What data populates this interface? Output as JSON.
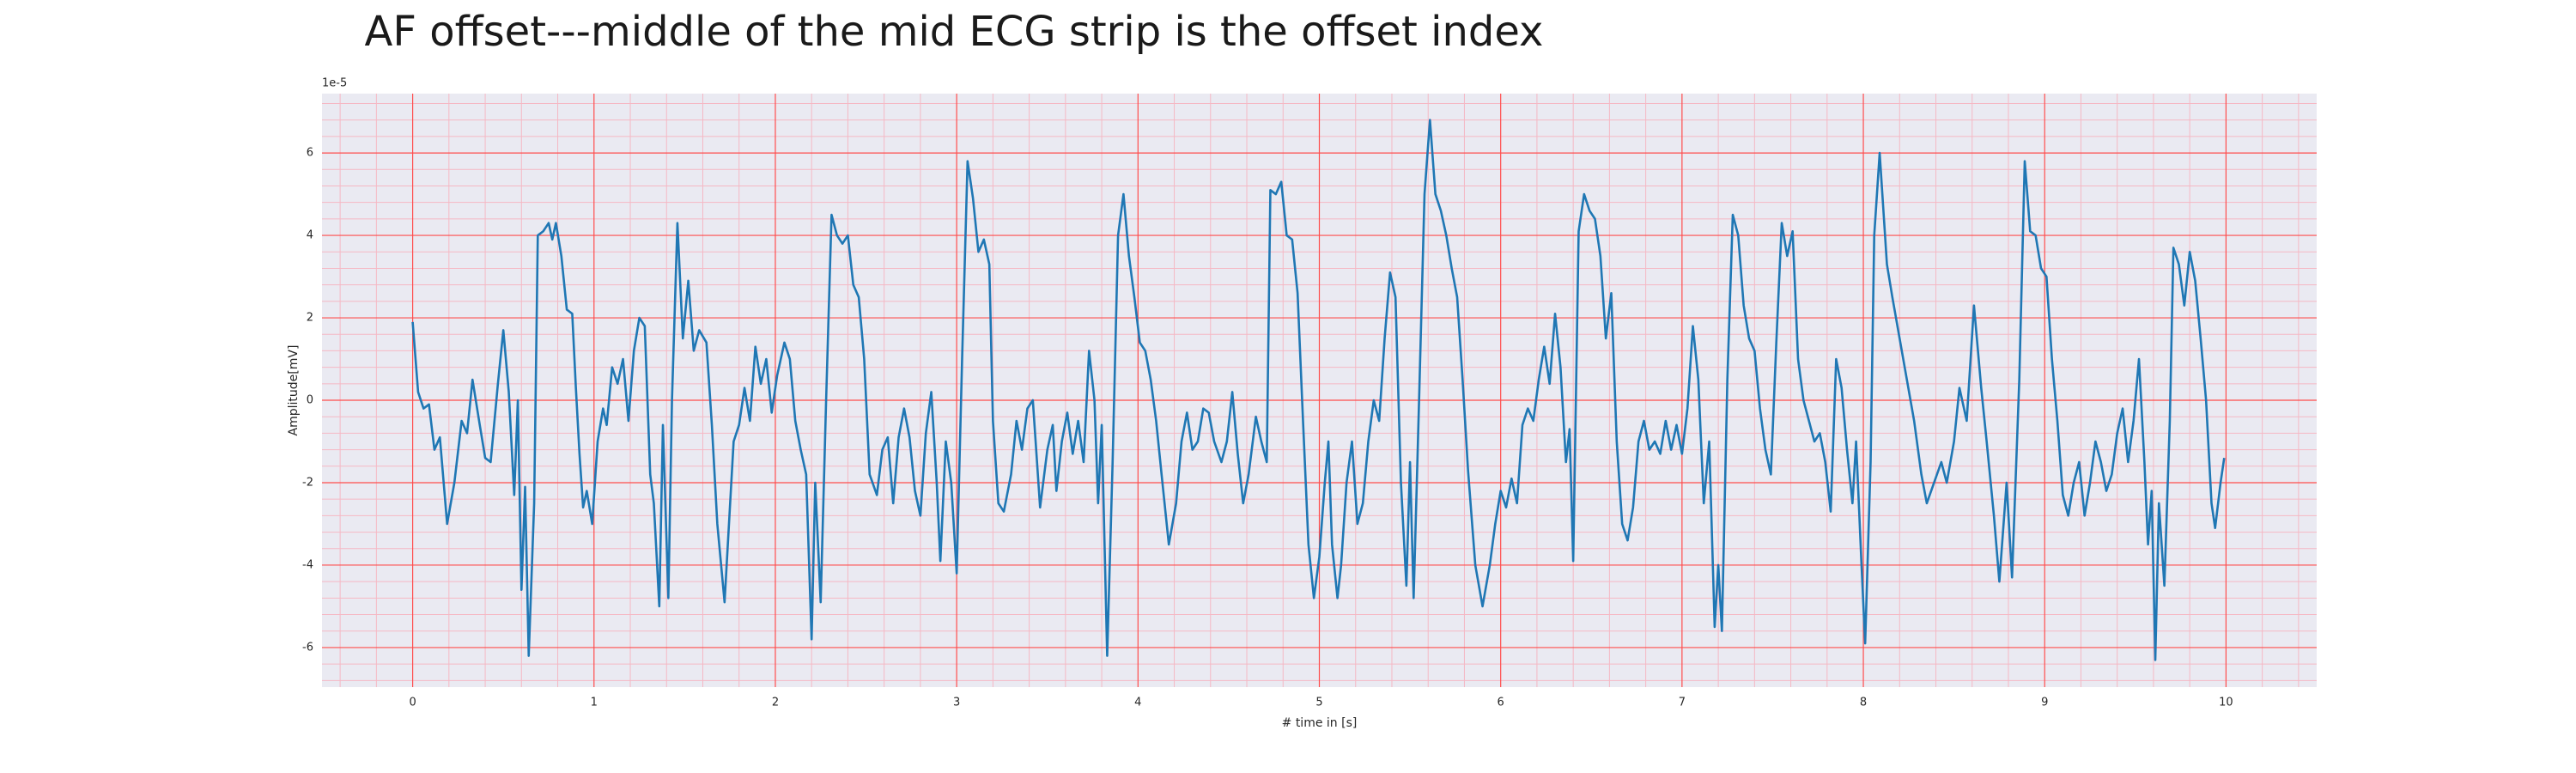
{
  "chart_data": {
    "type": "line",
    "title": "AF offset---middle of the mid ECG strip is the offset index",
    "x_label": "# time in [s]",
    "y_label": "Amplitude[mV]",
    "y_offset_label": "1e-5",
    "color": "#1f77b4",
    "grid": true,
    "grid_color": "#ff4d4d",
    "minor_grid_color": "#f5b8c4",
    "minor_grid_divisions": 5,
    "background": "#eaeaf2",
    "xlim": [
      -0.5,
      10.5
    ],
    "xticks": [
      0,
      1,
      2,
      3,
      4,
      5,
      6,
      7,
      8,
      9,
      10
    ],
    "ylim": [
      -6.96,
      7.44
    ],
    "yticks": [
      -6,
      -4,
      -2,
      0,
      2,
      4,
      6
    ],
    "x": [
      0.0,
      0.03,
      0.06,
      0.09,
      0.12,
      0.15,
      0.19,
      0.23,
      0.27,
      0.3,
      0.33,
      0.37,
      0.4,
      0.43,
      0.47,
      0.5,
      0.53,
      0.56,
      0.58,
      0.6,
      0.62,
      0.64,
      0.67,
      0.69,
      0.72,
      0.75,
      0.77,
      0.79,
      0.82,
      0.85,
      0.88,
      0.9,
      0.92,
      0.94,
      0.96,
      0.99,
      1.02,
      1.05,
      1.07,
      1.1,
      1.13,
      1.16,
      1.19,
      1.22,
      1.25,
      1.28,
      1.31,
      1.33,
      1.36,
      1.38,
      1.41,
      1.43,
      1.46,
      1.49,
      1.52,
      1.55,
      1.58,
      1.62,
      1.65,
      1.68,
      1.72,
      1.77,
      1.8,
      1.83,
      1.86,
      1.89,
      1.92,
      1.95,
      1.98,
      2.01,
      2.05,
      2.08,
      2.11,
      2.14,
      2.17,
      2.2,
      2.22,
      2.25,
      2.28,
      2.31,
      2.34,
      2.37,
      2.4,
      2.43,
      2.46,
      2.49,
      2.52,
      2.56,
      2.59,
      2.62,
      2.65,
      2.68,
      2.71,
      2.74,
      2.77,
      2.8,
      2.83,
      2.86,
      2.89,
      2.91,
      2.94,
      2.97,
      3.0,
      3.03,
      3.06,
      3.09,
      3.12,
      3.15,
      3.18,
      3.2,
      3.23,
      3.26,
      3.3,
      3.33,
      3.36,
      3.39,
      3.42,
      3.46,
      3.5,
      3.53,
      3.55,
      3.58,
      3.61,
      3.64,
      3.67,
      3.7,
      3.73,
      3.76,
      3.78,
      3.8,
      3.83,
      3.86,
      3.89,
      3.92,
      3.95,
      3.98,
      4.01,
      4.04,
      4.07,
      4.1,
      4.13,
      4.17,
      4.21,
      4.24,
      4.27,
      4.3,
      4.33,
      4.36,
      4.39,
      4.42,
      4.46,
      4.49,
      4.52,
      4.55,
      4.58,
      4.61,
      4.65,
      4.68,
      4.71,
      4.73,
      4.76,
      4.79,
      4.82,
      4.85,
      4.88,
      4.91,
      4.94,
      4.97,
      5.0,
      5.03,
      5.05,
      5.07,
      5.1,
      5.12,
      5.15,
      5.18,
      5.21,
      5.24,
      5.27,
      5.3,
      5.33,
      5.36,
      5.39,
      5.42,
      5.45,
      5.48,
      5.5,
      5.52,
      5.55,
      5.58,
      5.61,
      5.64,
      5.67,
      5.7,
      5.73,
      5.76,
      5.79,
      5.82,
      5.86,
      5.9,
      5.94,
      5.97,
      6.0,
      6.03,
      6.06,
      6.09,
      6.12,
      6.15,
      6.18,
      6.21,
      6.24,
      6.27,
      6.3,
      6.33,
      6.36,
      6.38,
      6.4,
      6.43,
      6.46,
      6.49,
      6.52,
      6.55,
      6.58,
      6.61,
      6.64,
      6.67,
      6.7,
      6.73,
      6.76,
      6.79,
      6.82,
      6.85,
      6.88,
      6.91,
      6.94,
      6.97,
      7.0,
      7.03,
      7.06,
      7.09,
      7.12,
      7.15,
      7.18,
      7.2,
      7.22,
      7.25,
      7.28,
      7.31,
      7.34,
      7.37,
      7.4,
      7.43,
      7.46,
      7.49,
      7.52,
      7.55,
      7.58,
      7.61,
      7.64,
      7.67,
      7.7,
      7.73,
      7.76,
      7.79,
      7.82,
      7.85,
      7.88,
      7.91,
      7.94,
      7.96,
      7.99,
      8.01,
      8.04,
      8.06,
      8.09,
      8.13,
      8.16,
      8.2,
      8.24,
      8.28,
      8.32,
      8.35,
      8.39,
      8.43,
      8.46,
      8.5,
      8.53,
      8.57,
      8.61,
      8.65,
      8.68,
      8.72,
      8.75,
      8.79,
      8.82,
      8.86,
      8.89,
      8.92,
      8.95,
      8.98,
      9.01,
      9.04,
      9.07,
      9.1,
      9.13,
      9.16,
      9.19,
      9.22,
      9.25,
      9.28,
      9.31,
      9.34,
      9.37,
      9.4,
      9.43,
      9.46,
      9.49,
      9.52,
      9.55,
      9.57,
      9.59,
      9.61,
      9.63,
      9.66,
      9.69,
      9.71,
      9.74,
      9.77,
      9.8,
      9.83,
      9.86,
      9.89,
      9.92,
      9.94,
      9.97,
      9.99
    ],
    "values": [
      1.9,
      0.2,
      -0.2,
      -0.1,
      -1.2,
      -0.9,
      -3.0,
      -2.0,
      -0.5,
      -0.8,
      0.5,
      -0.6,
      -1.4,
      -1.5,
      0.4,
      1.7,
      0.2,
      -2.3,
      0.0,
      -4.6,
      -2.1,
      -6.2,
      -2.5,
      4.0,
      4.1,
      4.3,
      3.9,
      4.3,
      3.5,
      2.2,
      2.1,
      0.3,
      -1.3,
      -2.6,
      -2.2,
      -3.0,
      -1.0,
      -0.2,
      -0.6,
      0.8,
      0.4,
      1.0,
      -0.5,
      1.2,
      2.0,
      1.8,
      -1.8,
      -2.5,
      -5.0,
      -0.6,
      -4.8,
      0.0,
      4.3,
      1.5,
      2.9,
      1.2,
      1.7,
      1.4,
      -0.6,
      -3.0,
      -4.9,
      -1.0,
      -0.6,
      0.3,
      -0.5,
      1.3,
      0.4,
      1.0,
      -0.3,
      0.6,
      1.4,
      1.0,
      -0.5,
      -1.2,
      -1.8,
      -5.8,
      -2.0,
      -4.9,
      0.0,
      4.5,
      4.0,
      3.8,
      4.0,
      2.8,
      2.5,
      1.0,
      -1.8,
      -2.3,
      -1.2,
      -0.9,
      -2.5,
      -0.9,
      -0.2,
      -0.9,
      -2.2,
      -2.8,
      -0.8,
      0.2,
      -2.0,
      -3.9,
      -1.0,
      -2.0,
      -4.2,
      1.0,
      5.8,
      4.9,
      3.6,
      3.9,
      3.3,
      -0.5,
      -2.5,
      -2.7,
      -1.8,
      -0.5,
      -1.2,
      -0.2,
      0.0,
      -2.6,
      -1.2,
      -0.6,
      -2.2,
      -1.0,
      -0.3,
      -1.3,
      -0.5,
      -1.5,
      1.2,
      0.0,
      -2.5,
      -0.6,
      -6.2,
      -1.5,
      4.0,
      5.0,
      3.5,
      2.5,
      1.4,
      1.2,
      0.5,
      -0.5,
      -1.8,
      -3.5,
      -2.5,
      -1.0,
      -0.3,
      -1.2,
      -1.0,
      -0.2,
      -0.3,
      -1.0,
      -1.5,
      -1.0,
      0.2,
      -1.3,
      -2.5,
      -1.8,
      -0.4,
      -1.0,
      -1.5,
      5.1,
      5.0,
      5.3,
      4.0,
      3.9,
      2.6,
      -0.5,
      -3.5,
      -4.8,
      -3.8,
      -2.0,
      -1.0,
      -3.5,
      -4.8,
      -4.0,
      -2.0,
      -1.0,
      -3.0,
      -2.5,
      -1.0,
      0.0,
      -0.5,
      1.5,
      3.1,
      2.5,
      -2.0,
      -4.5,
      -1.5,
      -4.8,
      0.0,
      5.0,
      6.8,
      5.0,
      4.6,
      4.0,
      3.2,
      2.5,
      0.5,
      -1.7,
      -4.0,
      -5.0,
      -4.0,
      -3.0,
      -2.2,
      -2.6,
      -1.9,
      -2.5,
      -0.6,
      -0.2,
      -0.5,
      0.5,
      1.3,
      0.4,
      2.1,
      0.8,
      -1.5,
      -0.7,
      -3.9,
      4.1,
      5.0,
      4.6,
      4.4,
      3.5,
      1.5,
      2.6,
      -1.0,
      -3.0,
      -3.4,
      -2.6,
      -1.0,
      -0.5,
      -1.2,
      -1.0,
      -1.3,
      -0.5,
      -1.2,
      -0.6,
      -1.3,
      -0.2,
      1.8,
      0.5,
      -2.5,
      -1.0,
      -5.5,
      -4.0,
      -5.6,
      0.5,
      4.5,
      4.0,
      2.3,
      1.5,
      1.2,
      -0.2,
      -1.2,
      -1.8,
      1.4,
      4.3,
      3.5,
      4.1,
      1.0,
      0.0,
      -0.5,
      -1.0,
      -0.8,
      -1.5,
      -2.7,
      1.0,
      0.3,
      -1.2,
      -2.5,
      -1.0,
      -4.0,
      -5.9,
      -1.5,
      4.0,
      6.0,
      3.3,
      2.5,
      1.5,
      0.5,
      -0.5,
      -1.8,
      -2.5,
      -2.0,
      -1.5,
      -2.0,
      -1.0,
      0.3,
      -0.5,
      2.3,
      0.3,
      -1.0,
      -2.8,
      -4.4,
      -2.0,
      -4.3,
      0.5,
      5.8,
      4.1,
      4.0,
      3.2,
      3.0,
      1.0,
      -0.5,
      -2.3,
      -2.8,
      -2.0,
      -1.5,
      -2.8,
      -2.0,
      -1.0,
      -1.5,
      -2.2,
      -1.8,
      -0.8,
      -0.2,
      -1.5,
      -0.5,
      1.0,
      -1.5,
      -3.5,
      -2.2,
      -6.3,
      -2.5,
      -4.5,
      -0.5,
      3.7,
      3.3,
      2.3,
      3.6,
      2.9,
      1.5,
      0.0,
      -2.5,
      -3.1,
      -2.0,
      -1.4
    ]
  }
}
